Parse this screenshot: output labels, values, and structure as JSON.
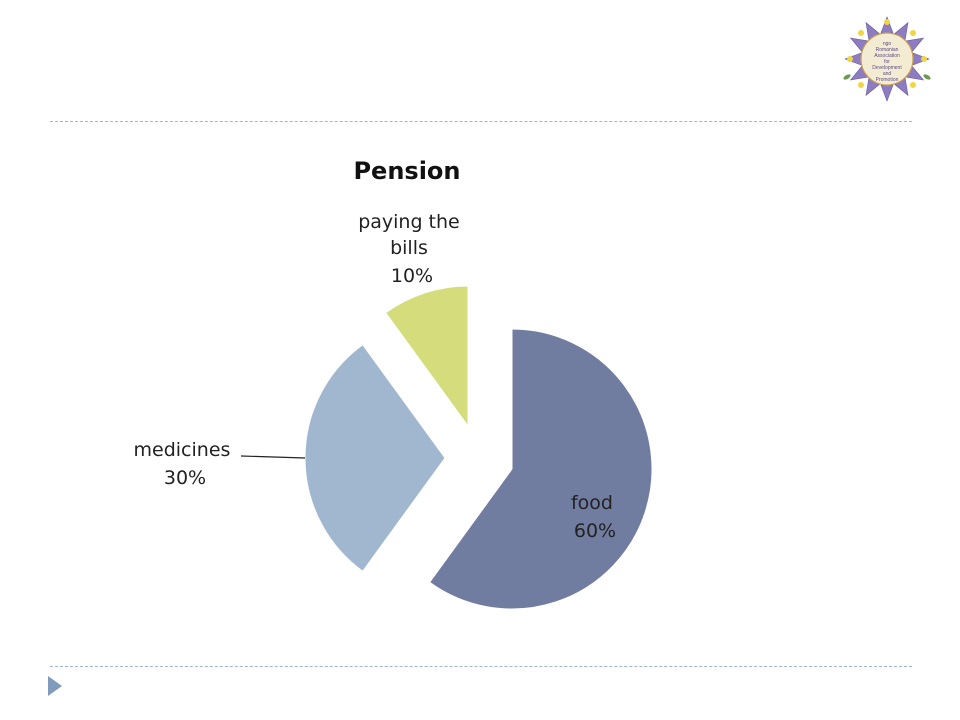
{
  "slide": {
    "logo_icon": "sunflower-logo-icon",
    "logo_text": [
      "ngo",
      "Romanian",
      "Association",
      "for",
      "Development",
      "and",
      "Promotion"
    ],
    "nav_icon": "triangle-right-icon",
    "divider_color": "#9fb7c9",
    "accent_color": "#7f9cbc"
  },
  "chart_data": {
    "type": "pie",
    "title": "Pension",
    "exploded": true,
    "start_angle_deg": 0,
    "direction": "clockwise",
    "slices": [
      {
        "label": "food",
        "value": 60,
        "display": "60%",
        "color": "#717ca1",
        "label_position": "inside"
      },
      {
        "label": "medicines",
        "value": 30,
        "display": "30%",
        "color": "#a0b7cf",
        "label_position": "outside-left"
      },
      {
        "label": "paying the bills",
        "value": 10,
        "display": "10%",
        "color": "#d5dc7b",
        "label_position": "outside-top"
      }
    ]
  }
}
